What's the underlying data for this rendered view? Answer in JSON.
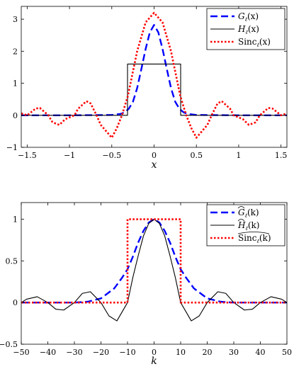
{
  "chart_data": [
    {
      "type": "line",
      "xlabel": "x",
      "ylabel": "",
      "xlim": [
        -1.57,
        1.57
      ],
      "ylim": [
        -1,
        3.4
      ],
      "xticks": [
        -1.5,
        -1,
        -0.5,
        0,
        0.5,
        1,
        1.5
      ],
      "xtick_labels": [
        "−1.5",
        "−1",
        "−0.5",
        "0",
        "0.5",
        "1",
        "1.5"
      ],
      "yticks": [
        -1,
        0,
        1,
        2,
        3
      ],
      "ytick_labels": [
        "−1",
        "0",
        "1",
        "2",
        "3"
      ],
      "grid": false,
      "legend_position": "top-right",
      "series": [
        {
          "name": "Gℓ(x)",
          "legend_main": "G",
          "legend_sub": "ℓ",
          "legend_arg": "(x)",
          "color": "#0000ff",
          "dash": "dashed",
          "x": [
            -1.57,
            -1.0,
            -0.5,
            -0.4,
            -0.35,
            -0.3,
            -0.25,
            -0.2,
            -0.15,
            -0.1,
            -0.05,
            0.0,
            0.05,
            0.1,
            0.15,
            0.2,
            0.25,
            0.3,
            0.35,
            0.4,
            0.5,
            1.0,
            1.57
          ],
          "y": [
            0,
            0,
            0.01,
            0.04,
            0.09,
            0.2,
            0.42,
            0.85,
            1.45,
            2.07,
            2.59,
            2.82,
            2.59,
            2.07,
            1.45,
            0.85,
            0.42,
            0.2,
            0.09,
            0.04,
            0.01,
            0,
            0
          ]
        },
        {
          "name": "Hℓ(x)",
          "legend_main": "H",
          "legend_sub": "ℓ",
          "legend_arg": "(x)",
          "color": "#000000",
          "dash": "solid",
          "x": [
            -1.57,
            -0.314,
            -0.314,
            0.314,
            0.314,
            1.57
          ],
          "y": [
            0,
            0,
            1.6,
            1.6,
            0,
            0
          ]
        },
        {
          "name": "Sincℓ(x)",
          "legend_main": "Sinc",
          "legend_sub": "ℓ",
          "legend_arg": "(x)",
          "color": "#ff0000",
          "dash": "dotted",
          "x": [
            -1.57,
            -1.5,
            -1.4,
            -1.35,
            -1.25,
            -1.2,
            -1.12,
            -1.05,
            -0.94,
            -0.9,
            -0.8,
            -0.75,
            -0.68,
            -0.63,
            -0.5,
            -0.44,
            -0.38,
            -0.31,
            -0.2,
            -0.1,
            0.0,
            0.1,
            0.2,
            0.31,
            0.38,
            0.44,
            0.5,
            0.63,
            0.68,
            0.75,
            0.8,
            0.9,
            0.94,
            1.05,
            1.12,
            1.2,
            1.25,
            1.35,
            1.4,
            1.5,
            1.57
          ],
          "y": [
            0.06,
            0.0,
            0.21,
            0.23,
            0.0,
            -0.22,
            -0.3,
            -0.12,
            0.0,
            0.2,
            0.44,
            0.37,
            0.0,
            -0.3,
            -0.7,
            -0.4,
            0.0,
            0.6,
            2.0,
            2.9,
            3.2,
            2.9,
            2.0,
            0.6,
            0.0,
            -0.4,
            -0.7,
            -0.3,
            0.0,
            0.37,
            0.44,
            0.2,
            0.0,
            -0.12,
            -0.3,
            -0.22,
            0.0,
            0.23,
            0.21,
            0.0,
            0.06
          ]
        }
      ]
    },
    {
      "type": "line",
      "xlabel": "k",
      "ylabel": "",
      "xlim": [
        -50,
        50
      ],
      "ylim": [
        -0.5,
        1.2
      ],
      "xticks": [
        -50,
        -40,
        -30,
        -20,
        -10,
        0,
        10,
        20,
        30,
        40,
        50
      ],
      "xtick_labels": [
        "−50",
        "−40",
        "−30",
        "−20",
        "−10",
        "0",
        "10",
        "20",
        "30",
        "40",
        "50"
      ],
      "yticks": [
        -0.5,
        0,
        0.5,
        1
      ],
      "ytick_labels": [
        "−0.5",
        "0",
        "0.5",
        "1"
      ],
      "grid": false,
      "legend_position": "top-right",
      "series": [
        {
          "name": "Ĝℓ(k)",
          "legend_main": "G",
          "legend_sub": "ℓ",
          "legend_arg": "(k)",
          "legend_hat": true,
          "color": "#0000ff",
          "dash": "dashed",
          "x": [
            -50,
            -30,
            -25,
            -20,
            -15,
            -12,
            -10,
            -8,
            -6,
            -4,
            -2,
            0,
            2,
            4,
            6,
            8,
            10,
            12,
            15,
            20,
            25,
            30,
            50
          ],
          "y": [
            0,
            0,
            0.01,
            0.05,
            0.17,
            0.3,
            0.4,
            0.55,
            0.72,
            0.86,
            0.96,
            1.0,
            0.96,
            0.86,
            0.72,
            0.55,
            0.4,
            0.3,
            0.17,
            0.05,
            0.01,
            0,
            0
          ]
        },
        {
          "name": "Ĥℓ(k)",
          "legend_main": "H",
          "legend_sub": "ℓ",
          "legend_arg": "(k)",
          "legend_hat": true,
          "color": "#000000",
          "dash": "solid",
          "x": [
            -50,
            -48,
            -44,
            -40,
            -37,
            -34,
            -30,
            -27,
            -24,
            -20,
            -17,
            -14,
            -10,
            -8,
            -6,
            -4,
            -2,
            0,
            2,
            4,
            6,
            8,
            10,
            14,
            17,
            20,
            24,
            27,
            30,
            34,
            37,
            40,
            44,
            48,
            50
          ],
          "y": [
            0,
            0.04,
            0.07,
            0.0,
            -0.08,
            -0.09,
            0.0,
            0.11,
            0.13,
            0.0,
            -0.16,
            -0.22,
            0.0,
            0.3,
            0.56,
            0.8,
            0.95,
            1.0,
            0.95,
            0.8,
            0.56,
            0.3,
            0.0,
            -0.22,
            -0.16,
            0.0,
            0.13,
            0.11,
            0.0,
            -0.09,
            -0.08,
            0.0,
            0.07,
            0.04,
            0
          ]
        },
        {
          "name": "Sincℓ(k)",
          "legend_main": "Sinc",
          "legend_sub": "ℓ",
          "legend_arg": "(k)",
          "legend_hat": true,
          "color": "#ff0000",
          "dash": "dotted",
          "x": [
            -50,
            -10,
            -10,
            10,
            10,
            50
          ],
          "y": [
            0,
            0,
            1,
            1,
            0,
            0
          ]
        }
      ]
    }
  ]
}
